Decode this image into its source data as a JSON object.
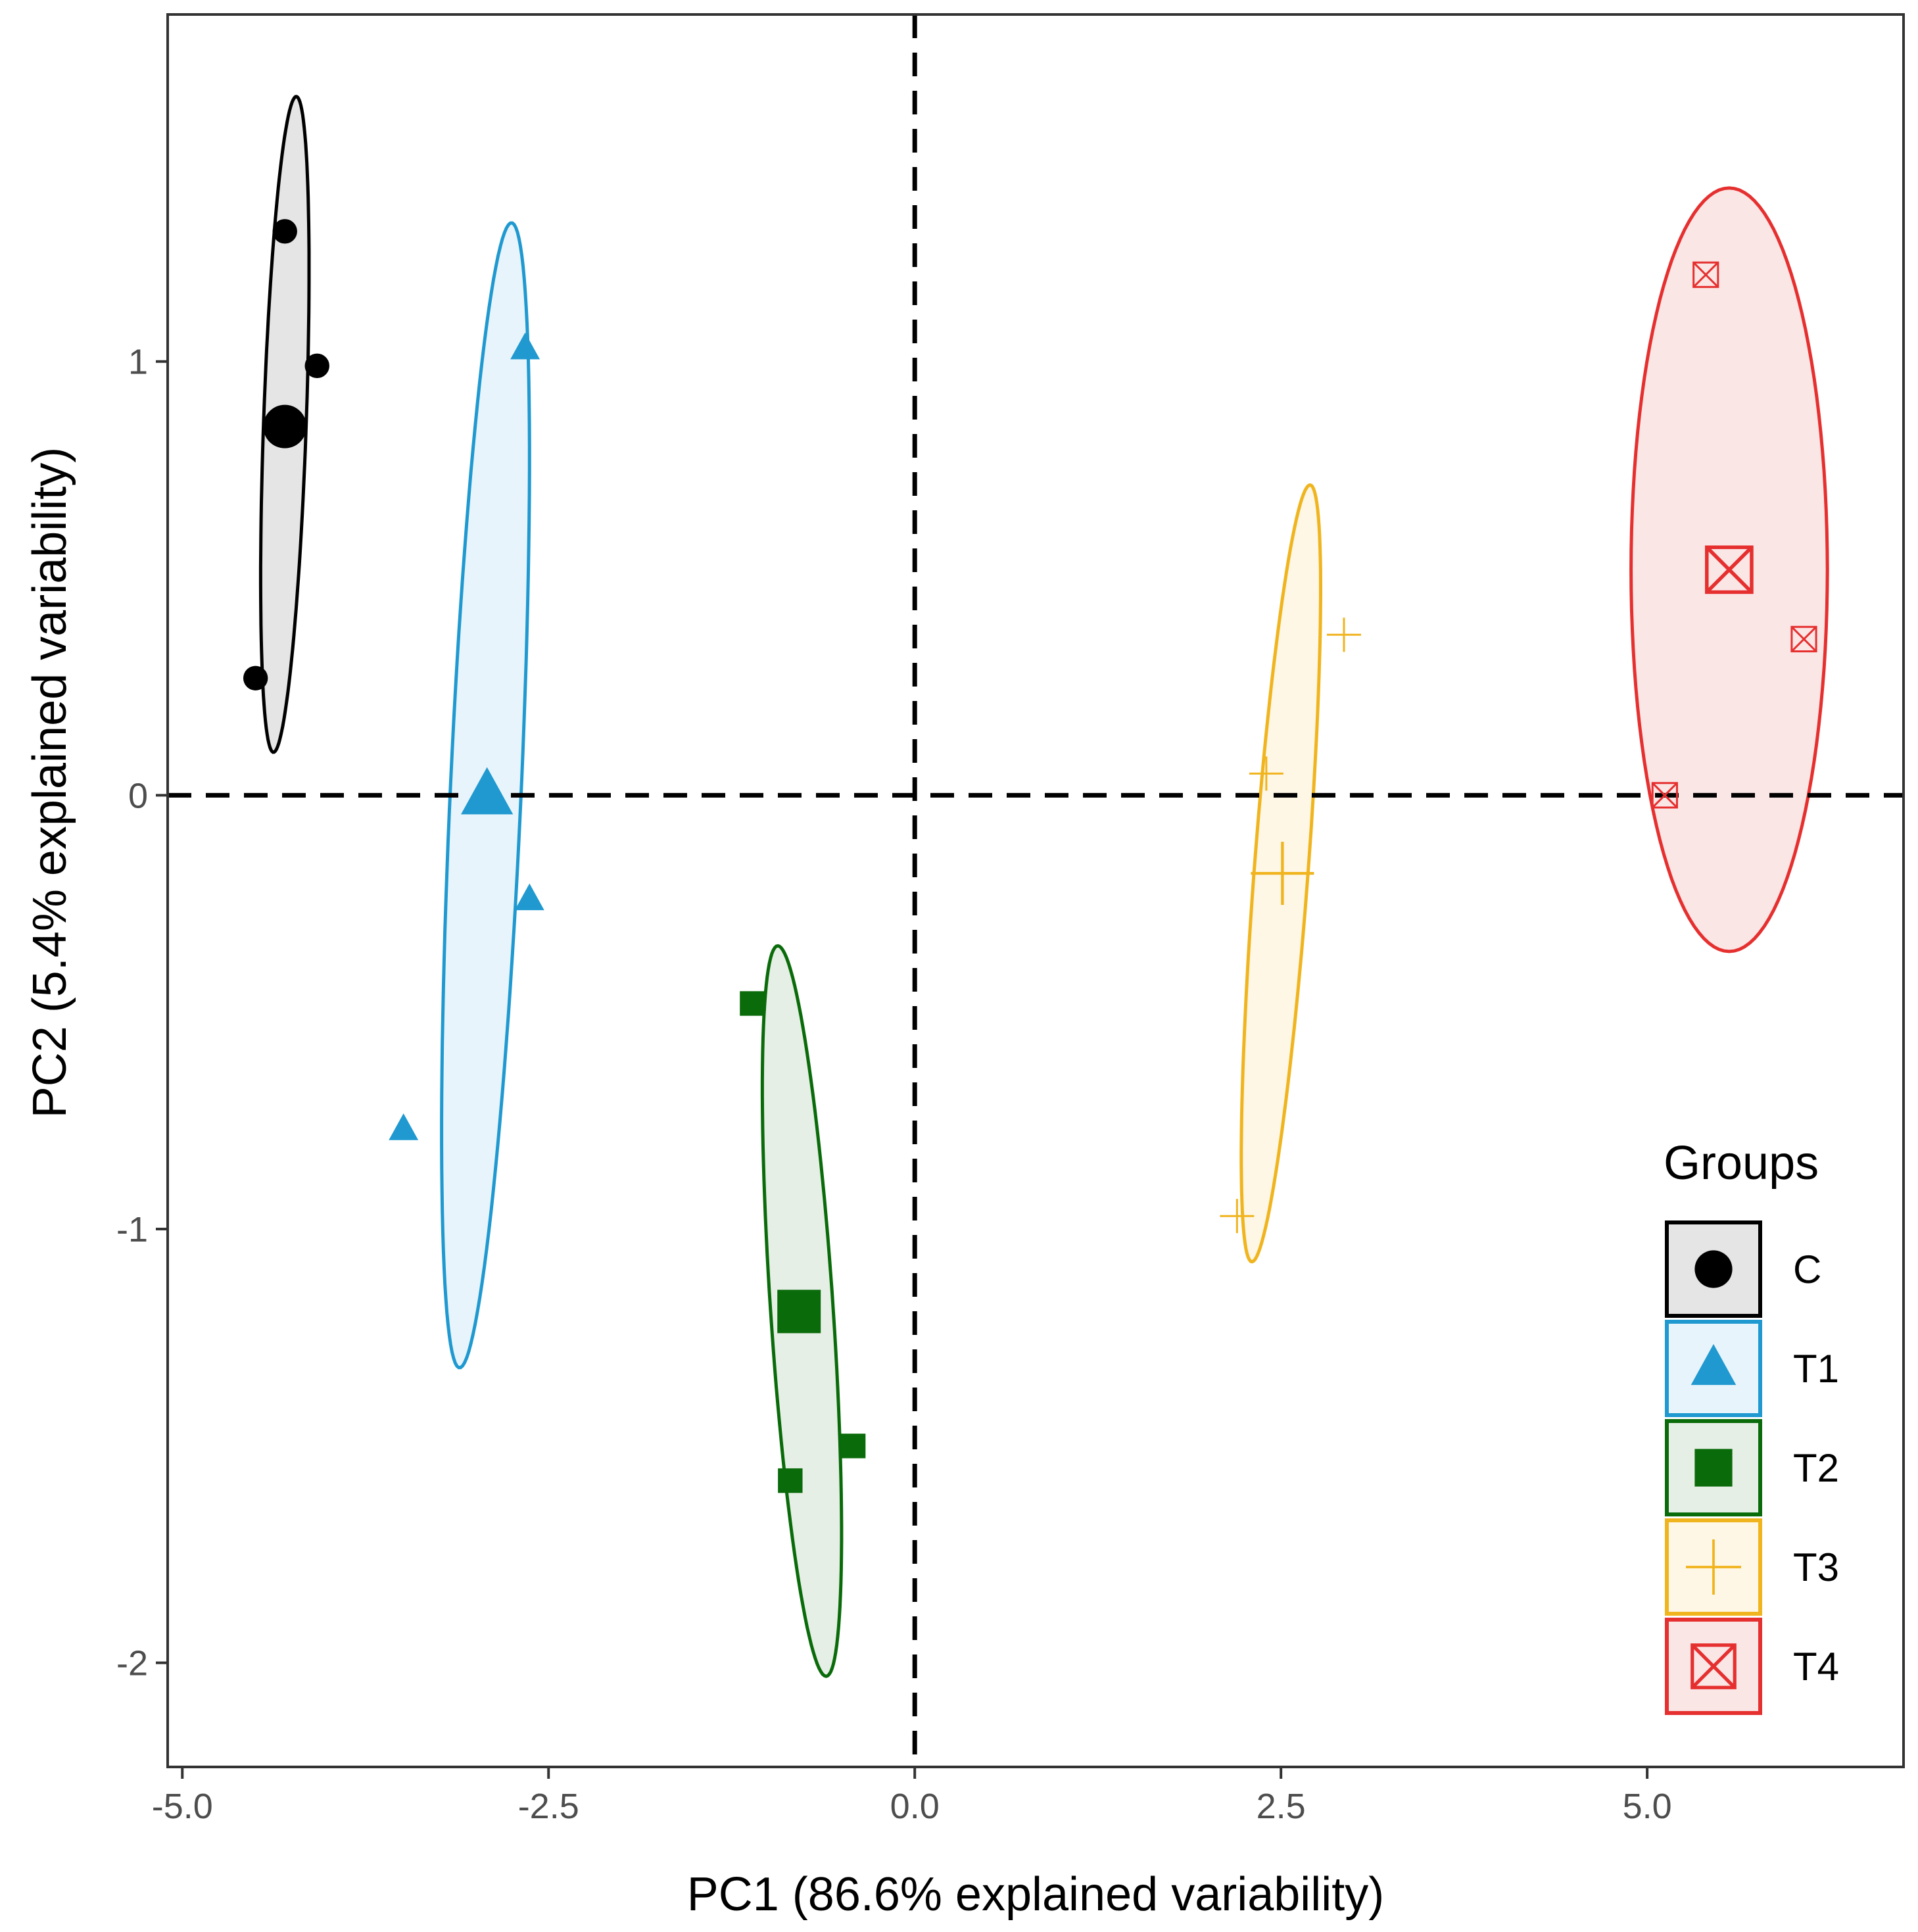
{
  "chart_data": {
    "type": "scatter",
    "title": "",
    "xlabel": "PC1 (86.6% explained variability)",
    "ylabel": "PC2 (5.4% explained variability)",
    "xlim": [
      -5.1,
      6.75
    ],
    "ylim": [
      -2.24,
      1.8
    ],
    "x_ticks": [
      -5.0,
      -2.5,
      0.0,
      2.5,
      5.0
    ],
    "x_tick_labels": [
      "-5.0",
      "-2.5",
      "0.0",
      "2.5",
      "5.0"
    ],
    "y_ticks": [
      -2,
      -1,
      0,
      1
    ],
    "y_tick_labels": [
      "-2",
      "-1",
      "0",
      "1"
    ],
    "reference_lines": {
      "x": 0,
      "y": 0,
      "style": "dashed"
    },
    "grid": false,
    "legend": {
      "title": "Groups",
      "position": "right"
    },
    "series": [
      {
        "name": "C",
        "marker": "circle",
        "color": "#000000",
        "fill": "#e5e5e5",
        "points": [
          [
            -4.3,
            1.3
          ],
          [
            -4.08,
            0.99
          ],
          [
            -4.5,
            0.27
          ]
        ],
        "centroid": [
          -4.3,
          0.85
        ],
        "ellipse": {
          "center": [
            -4.3,
            0.855
          ],
          "major": 0.76,
          "minor": 0.145,
          "angle_deg": 83.9
        }
      },
      {
        "name": "T1",
        "marker": "triangle",
        "color": "#1f99d0",
        "fill": "#e8f4fb",
        "points": [
          [
            -2.66,
            1.03
          ],
          [
            -2.63,
            -0.24
          ],
          [
            -3.49,
            -0.77
          ]
        ],
        "centroid": [
          -2.92,
          0.0
        ],
        "ellipse": {
          "center": [
            -2.93,
            -0.0
          ],
          "major": 1.332,
          "minor": 0.24,
          "angle_deg": 82.1
        }
      },
      {
        "name": "T2",
        "marker": "square",
        "color": "#0a6b0a",
        "fill": "#e6efe6",
        "points": [
          [
            -1.11,
            -0.48
          ],
          [
            -0.42,
            -1.5
          ],
          [
            -0.85,
            -1.58
          ]
        ],
        "centroid": [
          -0.79,
          -1.19
        ],
        "ellipse": {
          "center": [
            -0.77,
            -1.189
          ],
          "major": 0.859,
          "minor": 0.21,
          "angle_deg": -78.2
        }
      },
      {
        "name": "T3",
        "marker": "plus",
        "color": "#f0b41e",
        "fill": "#fef7e6",
        "points": [
          [
            2.93,
            0.37
          ],
          [
            2.4,
            0.05
          ],
          [
            2.2,
            -0.97
          ]
        ],
        "centroid": [
          2.51,
          -0.18
        ],
        "ellipse": {
          "center": [
            2.5,
            -0.18
          ],
          "major": 0.918,
          "minor": 0.18,
          "angle_deg": 77.0
        }
      },
      {
        "name": "T4",
        "marker": "boxed-x",
        "color": "#e5302f",
        "fill": "#fbe6e6",
        "points": [
          [
            5.4,
            1.2
          ],
          [
            6.07,
            0.36
          ],
          [
            5.12,
            -0.0
          ]
        ],
        "centroid": [
          5.56,
          0.52
        ],
        "ellipse": {
          "center": [
            5.56,
            0.52
          ],
          "major": 0.88,
          "minor": 0.67,
          "angle_deg": 90.0
        }
      }
    ]
  }
}
